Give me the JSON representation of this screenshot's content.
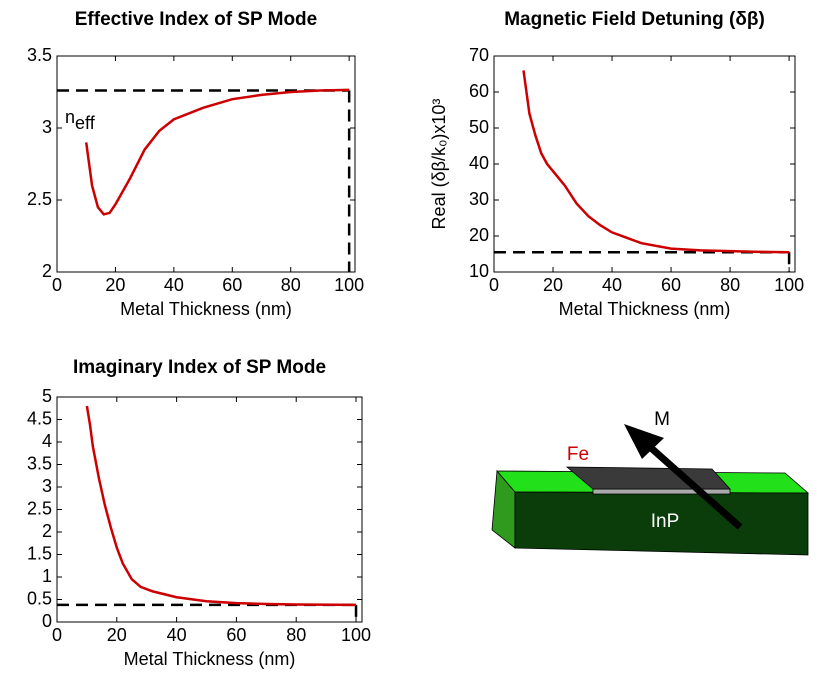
{
  "chart_data": [
    {
      "type": "line",
      "title": "Effective Index of SP Mode",
      "x_label": "Metal Thickness (nm)",
      "annotation": {
        "text": "n",
        "sub": "eff"
      },
      "xlim": [
        0,
        102
      ],
      "ylim": [
        2,
        3.5
      ],
      "xticks": [
        0,
        20,
        40,
        60,
        80,
        100
      ],
      "yticks": [
        2,
        2.5,
        3,
        3.5
      ],
      "color": "#cc0000",
      "x": [
        10,
        12,
        14,
        16,
        18,
        20,
        25,
        30,
        35,
        40,
        50,
        60,
        70,
        80,
        90,
        100
      ],
      "values": [
        2.9,
        2.6,
        2.45,
        2.4,
        2.41,
        2.47,
        2.65,
        2.85,
        2.98,
        3.06,
        3.14,
        3.2,
        3.23,
        3.25,
        3.26,
        3.265
      ],
      "reference": {
        "x": 100,
        "y": 3.26
      }
    },
    {
      "type": "line",
      "title": "Magnetic Field Detuning (δβ)",
      "x_label": "Metal Thickness (nm)",
      "y_label": "Real (δβ/k₀)x10³",
      "xlim": [
        0,
        102
      ],
      "ylim": [
        10,
        70
      ],
      "xticks": [
        0,
        20,
        40,
        60,
        80,
        100
      ],
      "yticks": [
        10,
        20,
        30,
        40,
        50,
        60,
        70
      ],
      "color": "#cc0000",
      "x": [
        10,
        11,
        12,
        14,
        16,
        18,
        20,
        24,
        28,
        32,
        36,
        40,
        45,
        50,
        60,
        70,
        80,
        90,
        100
      ],
      "values": [
        66,
        60,
        54,
        48,
        43,
        40,
        38,
        34,
        29,
        25.5,
        23,
        21,
        19.5,
        18,
        16.5,
        16,
        15.8,
        15.6,
        15.5
      ],
      "reference": {
        "x": 100,
        "y": 15.5
      }
    },
    {
      "type": "line",
      "title": "Imaginary Index of SP Mode",
      "x_label": "Metal Thickness (nm)",
      "xlim": [
        0,
        102
      ],
      "ylim": [
        0,
        5
      ],
      "xticks": [
        0,
        20,
        40,
        60,
        80,
        100
      ],
      "yticks": [
        0,
        0.5,
        1,
        1.5,
        2,
        2.5,
        3,
        3.5,
        4,
        4.5,
        5
      ],
      "color": "#cc0000",
      "x": [
        10,
        11,
        12,
        14,
        16,
        18,
        20,
        22,
        25,
        28,
        32,
        40,
        50,
        60,
        70,
        80,
        100
      ],
      "values": [
        4.8,
        4.4,
        3.9,
        3.2,
        2.6,
        2.1,
        1.65,
        1.3,
        0.95,
        0.78,
        0.68,
        0.55,
        0.46,
        0.42,
        0.4,
        0.39,
        0.38
      ],
      "reference": {
        "x": 100,
        "y": 0.38
      }
    }
  ],
  "diagram": {
    "metal": "Fe",
    "magnetization": "M",
    "substrate": "InP"
  }
}
